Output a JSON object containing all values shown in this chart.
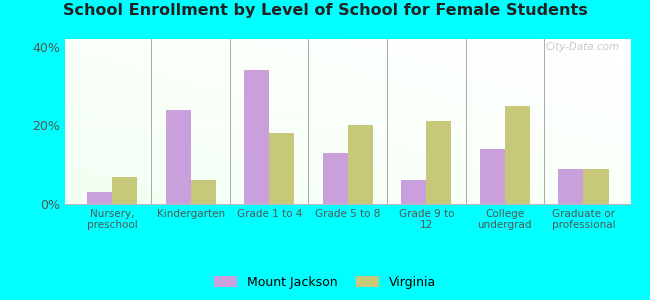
{
  "title": "School Enrollment by Level of School for Female Students",
  "categories": [
    "Nursery,\npreschool",
    "Kindergarten",
    "Grade 1 to 4",
    "Grade 5 to 8",
    "Grade 9 to\n12",
    "College\nundergrad",
    "Graduate or\nprofessional"
  ],
  "mount_jackson": [
    3.0,
    24.0,
    34.0,
    13.0,
    6.0,
    14.0,
    9.0
  ],
  "virginia": [
    7.0,
    6.0,
    18.0,
    20.0,
    21.0,
    25.0,
    9.0
  ],
  "color_mj": "#c9a0dc",
  "color_va": "#c8c87a",
  "ylim": [
    0,
    42
  ],
  "yticks": [
    0,
    20,
    40
  ],
  "ytick_labels": [
    "0%",
    "20%",
    "40%"
  ],
  "background_color": "#00ffff",
  "legend_mj": "Mount Jackson",
  "legend_va": "Virginia",
  "watermark": "City-Data.com",
  "bar_width": 0.32
}
